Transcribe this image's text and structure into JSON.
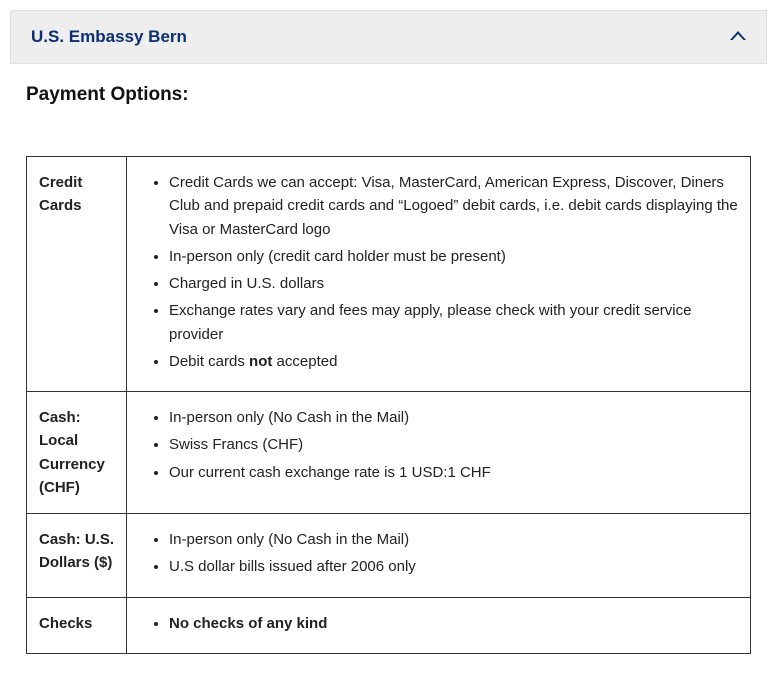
{
  "accordion": {
    "title": "U.S. Embassy Bern"
  },
  "section": {
    "heading": "Payment Options:"
  },
  "table": {
    "rows": [
      {
        "label": "Credit Cards",
        "items": [
          {
            "text": "Credit Cards we can accept: Visa, MasterCard, American Express, Discover, Diners Club and prepaid credit cards and “Logoed” debit cards, i.e. debit cards displaying the Visa or MasterCard logo"
          },
          {
            "text": "In-person only (credit card holder must be present)"
          },
          {
            "text": "Charged in U.S. dollars"
          },
          {
            "text": "Exchange rates vary and fees may apply, please check with your credit service provider"
          },
          {
            "parts": [
              {
                "text": "Debit cards "
              },
              {
                "text": "not",
                "bold": true
              },
              {
                "text": " accepted"
              }
            ]
          }
        ]
      },
      {
        "label": "Cash: Local Currency (CHF)",
        "items": [
          {
            "text": "In-person only (No Cash in the Mail)"
          },
          {
            "text": "Swiss Francs (CHF)"
          },
          {
            "text": "Our current cash exchange rate is 1 USD:1 CHF"
          }
        ]
      },
      {
        "label": "Cash: U.S. Dollars ($)",
        "items": [
          {
            "text": "In-person only (No Cash in the Mail)"
          },
          {
            "text": "U.S dollar bills issued after 2006 only"
          }
        ]
      },
      {
        "label": "Checks",
        "items": [
          {
            "parts": [
              {
                "text": "No checks of any kind",
                "bold": true
              }
            ]
          }
        ]
      }
    ]
  }
}
